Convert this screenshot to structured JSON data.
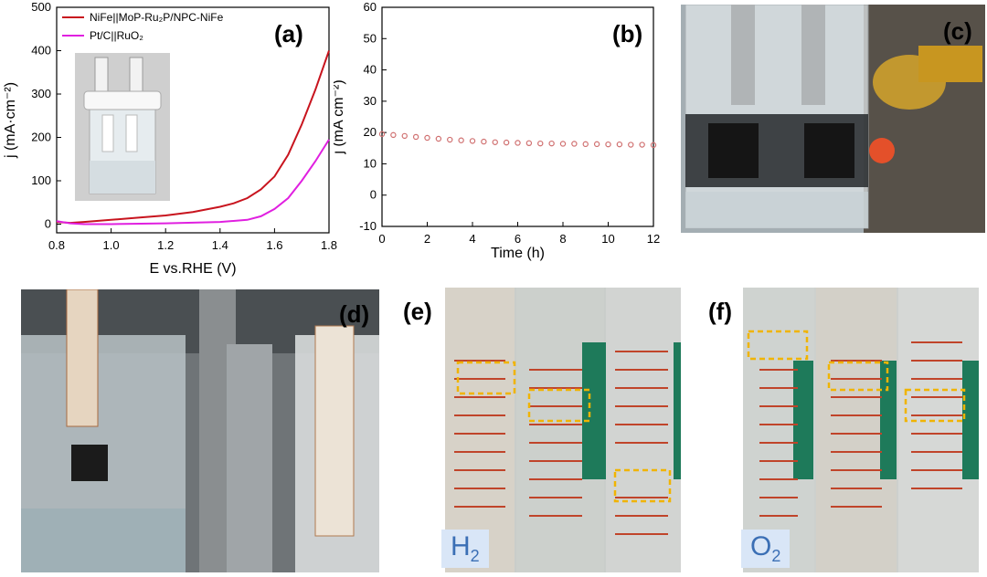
{
  "panel_labels": {
    "a": "(a)",
    "b": "(b)",
    "c": "(c)",
    "d": "(d)",
    "e": "(e)",
    "f": "(f)"
  },
  "gas_labels": {
    "e": {
      "base": "H",
      "sub": "2"
    },
    "f": {
      "base": "O",
      "sub": "2"
    }
  },
  "chart_data": [
    {
      "panel": "(a)",
      "type": "line",
      "xlabel": "E vs.RHE (V)",
      "ylabel": "j (mA·cm⁻²)",
      "xlim": [
        0.8,
        1.8
      ],
      "ylim": [
        -20,
        500
      ],
      "xticks": [
        "0.8",
        "1.0",
        "1.2",
        "1.4",
        "1.6",
        "1.8"
      ],
      "yticks": [
        "0",
        "100",
        "200",
        "300",
        "400",
        "500"
      ],
      "grid": false,
      "legend_position": "top-left",
      "series": [
        {
          "name": "NiFe||MoP-Ru₂P/NPC-NiFe",
          "color": "#c8141e",
          "x": [
            0.8,
            0.85,
            0.9,
            1.0,
            1.1,
            1.2,
            1.3,
            1.4,
            1.45,
            1.5,
            1.55,
            1.6,
            1.65,
            1.7,
            1.75,
            1.8
          ],
          "y": [
            5,
            3,
            5,
            10,
            15,
            20,
            28,
            40,
            48,
            60,
            80,
            110,
            160,
            230,
            310,
            400
          ]
        },
        {
          "name": "Pt/C||RuO₂",
          "color": "#e020e0",
          "x": [
            0.8,
            0.85,
            0.9,
            1.0,
            1.2,
            1.4,
            1.5,
            1.55,
            1.6,
            1.65,
            1.7,
            1.75,
            1.8
          ],
          "y": [
            7,
            2,
            0,
            0,
            2,
            5,
            10,
            18,
            35,
            60,
            100,
            145,
            195
          ]
        }
      ]
    },
    {
      "panel": "(b)",
      "type": "scatter",
      "xlabel": "Time (h)",
      "ylabel": "j (mA cm⁻²)",
      "xlim": [
        0,
        12
      ],
      "ylim": [
        -10,
        60
      ],
      "xticks": [
        "0",
        "2",
        "4",
        "6",
        "8",
        "10",
        "12"
      ],
      "yticks": [
        "-10",
        "0",
        "10",
        "20",
        "30",
        "40",
        "50",
        "60"
      ],
      "grid": false,
      "color": "#d07070",
      "x": [
        0,
        0.5,
        1,
        1.5,
        2,
        2.5,
        3,
        3.5,
        4,
        4.5,
        5,
        5.5,
        6,
        6.5,
        7,
        7.5,
        8,
        8.5,
        9,
        9.5,
        10,
        10.5,
        11,
        11.5,
        12
      ],
      "y": [
        19.5,
        19.2,
        18.9,
        18.6,
        18.3,
        18.0,
        17.7,
        17.5,
        17.3,
        17.1,
        16.9,
        16.8,
        16.7,
        16.6,
        16.5,
        16.5,
        16.4,
        16.4,
        16.3,
        16.3,
        16.2,
        16.2,
        16.1,
        16.1,
        16.0
      ]
    }
  ]
}
